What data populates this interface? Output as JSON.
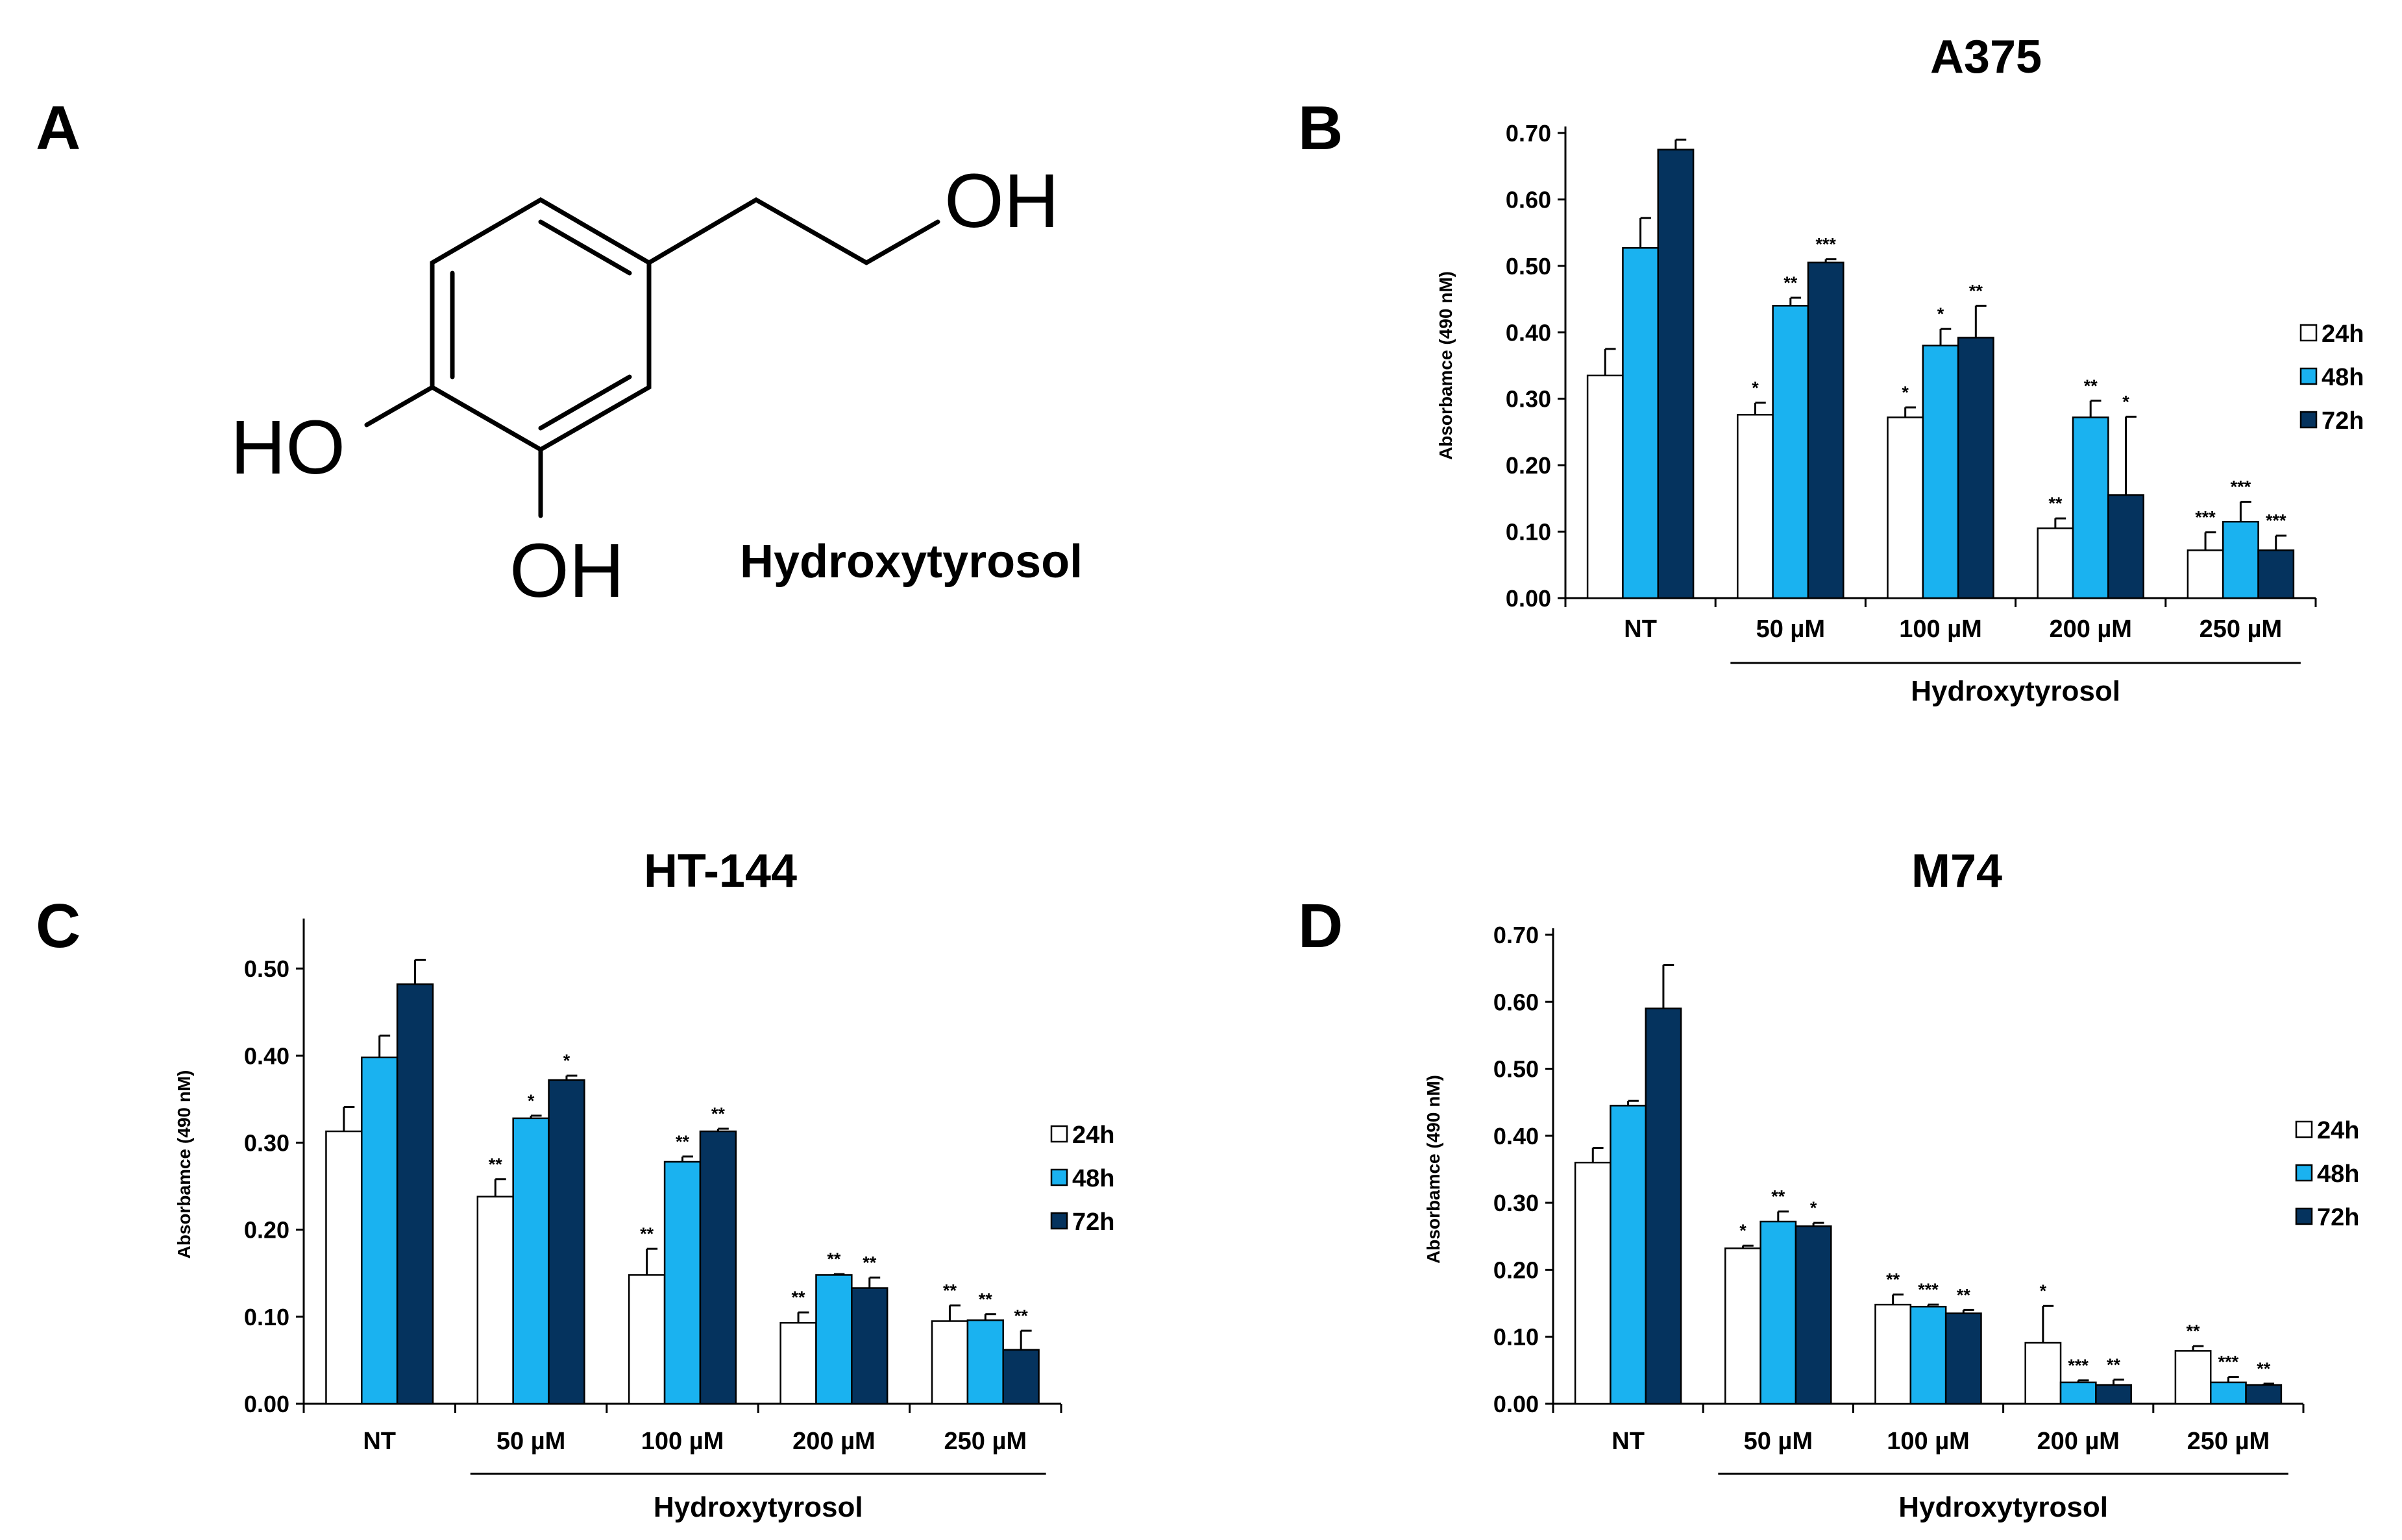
{
  "panel_a": {
    "letter": "A",
    "molecule_name": "Hydroxytyrosol",
    "atoms": {
      "oh_top": "OH",
      "ho_left": "HO",
      "oh_bottom": "OH"
    }
  },
  "colors": {
    "24h": "#ffffff",
    "48h": "#1ab2f0",
    "72h": "#05335e",
    "axis": "#000000"
  },
  "chart_data": [
    {
      "panel": "B",
      "type": "bar",
      "title": "A375",
      "ylabel": "Absorbamce (490 nM)",
      "xgroup_label": "Hydroxytyrosol",
      "ylim": [
        0,
        0.7
      ],
      "yticks": [
        "0.00",
        "0.10",
        "0.20",
        "0.30",
        "0.40",
        "0.50",
        "0.60",
        "0.70"
      ],
      "categories": [
        "NT",
        "50 µM",
        "100 µM",
        "200 µM",
        "250 µM"
      ],
      "legend_position": "right",
      "series": [
        {
          "name": "24h",
          "values": [
            0.335,
            0.276,
            0.272,
            0.105,
            0.072
          ],
          "errors": [
            0.04,
            0.018,
            0.015,
            0.015,
            0.027
          ],
          "sig": [
            "",
            "*",
            "*",
            "**",
            "***"
          ]
        },
        {
          "name": "48h",
          "values": [
            0.527,
            0.44,
            0.38,
            0.272,
            0.115
          ],
          "errors": [
            0.045,
            0.012,
            0.025,
            0.025,
            0.03
          ],
          "sig": [
            "",
            "**",
            "*",
            "**",
            "***"
          ]
        },
        {
          "name": "72h",
          "values": [
            0.675,
            0.505,
            0.392,
            0.155,
            0.072
          ],
          "errors": [
            0.015,
            0.005,
            0.048,
            0.118,
            0.022
          ],
          "sig": [
            "",
            "***",
            "**",
            "*",
            "***"
          ]
        }
      ]
    },
    {
      "panel": "C",
      "type": "bar",
      "title": "HT-144",
      "ylabel": "Absorbamce (490 nM)",
      "xgroup_label": "Hydroxytyrosol",
      "ylim": [
        0,
        0.55
      ],
      "yticks": [
        "0.00",
        "0.10",
        "0.20",
        "0.30",
        "0.40",
        "0.50"
      ],
      "categories": [
        "NT",
        "50 µM",
        "100 µM",
        "200 µM",
        "250 µM"
      ],
      "legend_position": "right",
      "series": [
        {
          "name": "24h",
          "values": [
            0.313,
            0.238,
            0.148,
            0.093,
            0.095
          ],
          "errors": [
            0.028,
            0.02,
            0.03,
            0.012,
            0.018
          ],
          "sig": [
            "",
            "**",
            "**",
            "**",
            "**"
          ]
        },
        {
          "name": "48h",
          "values": [
            0.398,
            0.328,
            0.278,
            0.148,
            0.096
          ],
          "errors": [
            0.025,
            0.003,
            0.006,
            0.001,
            0.007
          ],
          "sig": [
            "",
            "*",
            "**",
            "**",
            "**"
          ]
        },
        {
          "name": "72h",
          "values": [
            0.482,
            0.372,
            0.313,
            0.133,
            0.062
          ],
          "errors": [
            0.028,
            0.005,
            0.003,
            0.012,
            0.022
          ],
          "sig": [
            "",
            "*",
            "**",
            "**",
            "**"
          ]
        }
      ]
    },
    {
      "panel": "D",
      "type": "bar",
      "title": "M74",
      "ylabel": "Absorbamce (490 nM)",
      "xgroup_label": "Hydroxytyrosol",
      "ylim": [
        0,
        0.7
      ],
      "yticks": [
        "0.00",
        "0.10",
        "0.20",
        "0.30",
        "0.40",
        "0.50",
        "0.60",
        "0.70"
      ],
      "categories": [
        "NT",
        "50 µM",
        "100 µM",
        "200 µM",
        "250 µM"
      ],
      "legend_position": "right",
      "series": [
        {
          "name": "24h",
          "values": [
            0.36,
            0.232,
            0.148,
            0.091,
            0.079
          ],
          "errors": [
            0.022,
            0.004,
            0.015,
            0.055,
            0.007
          ],
          "sig": [
            "",
            "*",
            "**",
            "*",
            "**"
          ]
        },
        {
          "name": "48h",
          "values": [
            0.445,
            0.272,
            0.145,
            0.032,
            0.032
          ],
          "errors": [
            0.007,
            0.015,
            0.003,
            0.003,
            0.008
          ],
          "sig": [
            "",
            "**",
            "***",
            "***",
            "***"
          ]
        },
        {
          "name": "72h",
          "values": [
            0.59,
            0.265,
            0.135,
            0.028,
            0.028
          ],
          "errors": [
            0.065,
            0.005,
            0.005,
            0.008,
            0.002
          ],
          "sig": [
            "",
            "*",
            "**",
            "**",
            "**"
          ]
        }
      ]
    }
  ]
}
